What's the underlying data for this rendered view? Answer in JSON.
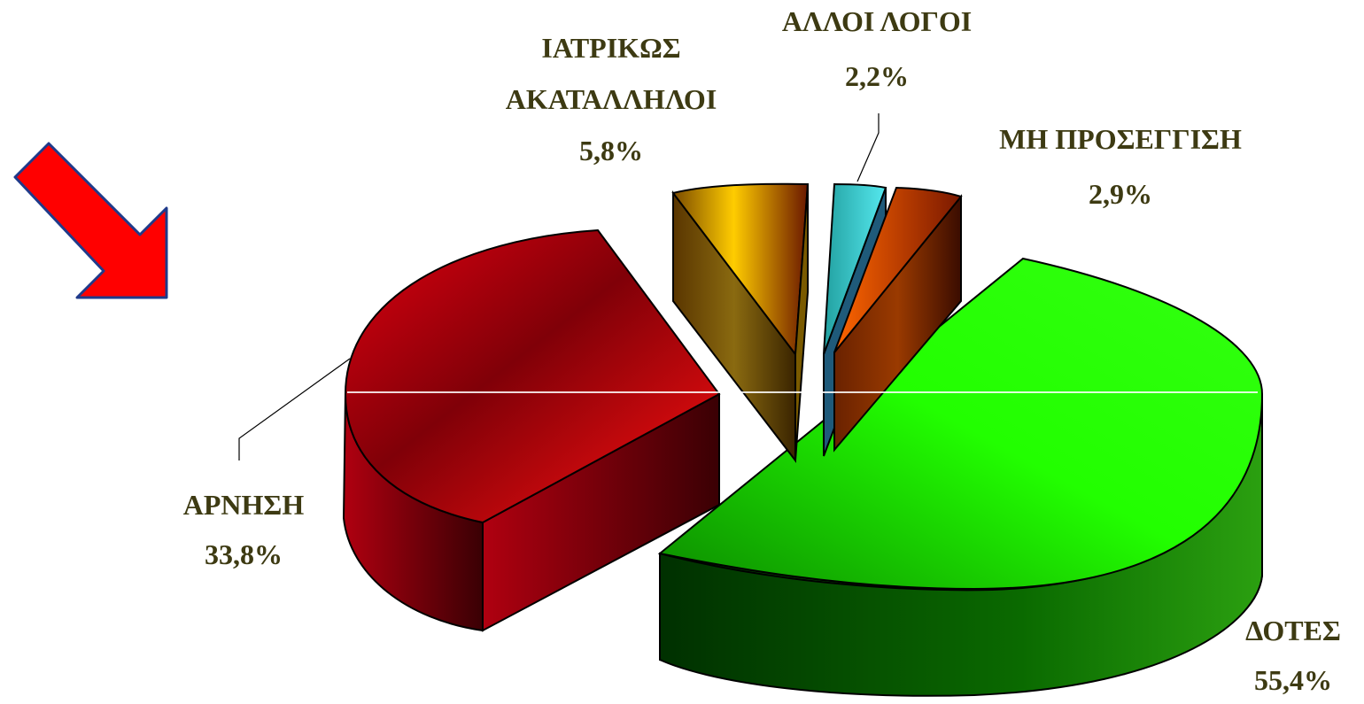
{
  "colors": {
    "label_text": "#3d3a12",
    "arrow": "#ff0000",
    "arrow_outline": "#1f3a8a",
    "slice_dotes": "#22ff00",
    "slice_arnisi": "#e00010",
    "slice_iatrikos": "#ffcc00",
    "slice_alloi": "#33cccc",
    "slice_mi_proseggisi": "#ff6600"
  },
  "chart_data": {
    "type": "pie",
    "style": "3d-exploded",
    "title": "",
    "slices": [
      {
        "label_lines": [
          "ΔΟΤΕΣ"
        ],
        "value": 55.4,
        "value_text": "55,4%"
      },
      {
        "label_lines": [
          "ΑΡΝΗΣΗ"
        ],
        "value": 33.8,
        "value_text": "33,8%"
      },
      {
        "label_lines": [
          "ΙΑΤΡΙΚΩΣ",
          "ΑΚΑΤΑΛΛΗΛΟΙ"
        ],
        "value": 5.8,
        "value_text": "5,8%"
      },
      {
        "label_lines": [
          "ΑΛΛΟΙ ΛΟΓΟΙ"
        ],
        "value": 2.2,
        "value_text": "2,2%"
      },
      {
        "label_lines": [
          "ΜΗ ΠΡΟΣΕΓΓΙΣΗ"
        ],
        "value": 2.9,
        "value_text": "2,9%"
      }
    ],
    "pointer_arrow": "points to ΑΡΝΗΣΗ"
  }
}
